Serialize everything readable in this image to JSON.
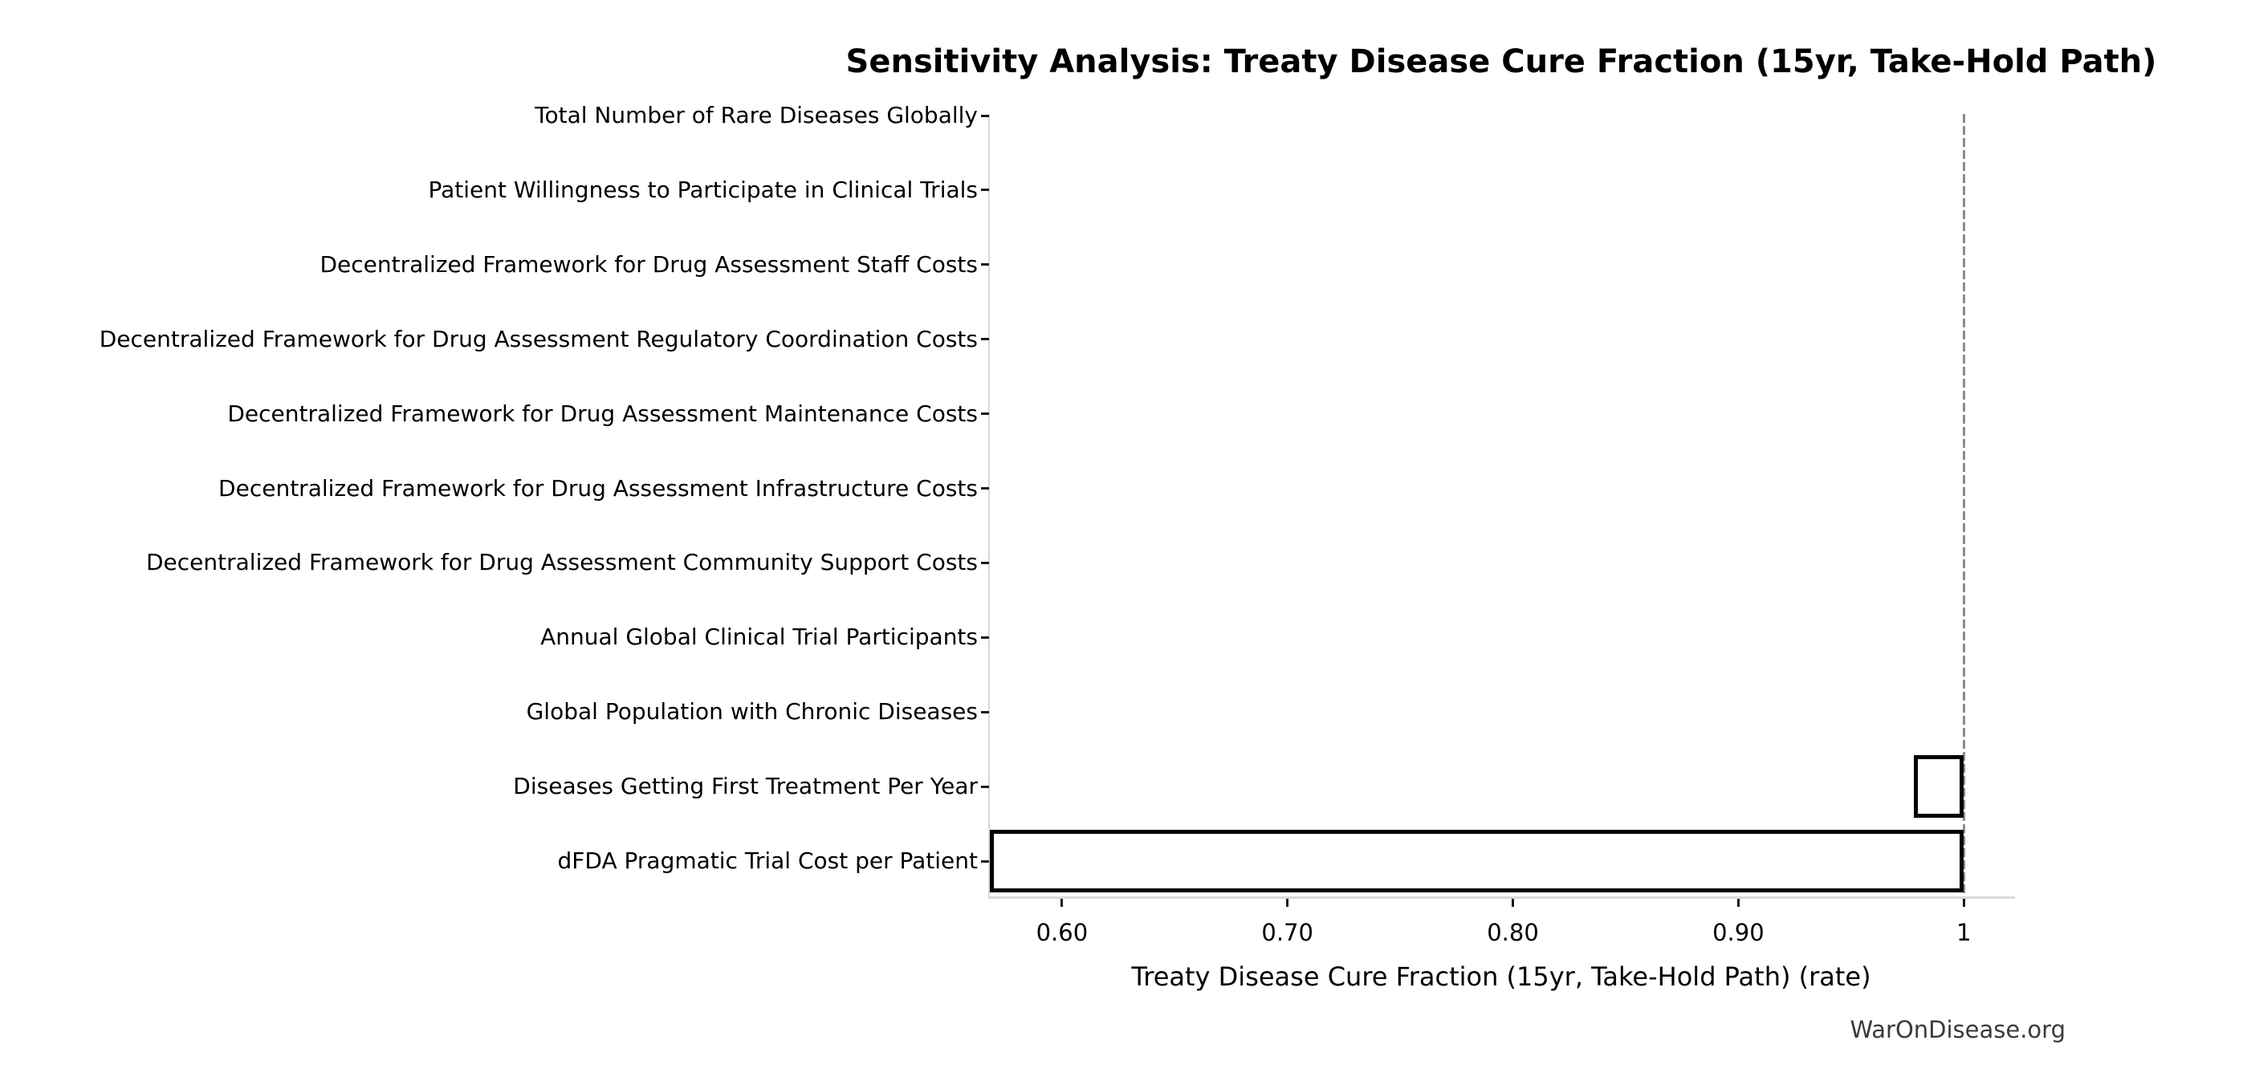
{
  "header": {
    "title": "Sensitivity Analysis: Treaty Disease Cure Fraction (15yr, Take-Hold Path)"
  },
  "footer": {
    "watermark": "WarOnDisease.org"
  },
  "chart_data": {
    "type": "bar",
    "orientation": "horizontal",
    "title": "Sensitivity Analysis: Treaty Disease Cure Fraction (15yr, Take-Hold Path)",
    "xlabel": "Treaty Disease Cure Fraction (15yr, Take-Hold Path) (rate)",
    "ylabel": "",
    "grid": false,
    "legend": null,
    "xlim": [
      0.568,
      1.022
    ],
    "baseline": 1.0,
    "xticks": [
      {
        "value": 0.6,
        "label": "0.60"
      },
      {
        "value": 0.7,
        "label": "0.70"
      },
      {
        "value": 0.8,
        "label": "0.80"
      },
      {
        "value": 0.9,
        "label": "0.90"
      },
      {
        "value": 1.0,
        "label": "1"
      }
    ],
    "categories": [
      "Total Number of Rare Diseases Globally",
      "Patient Willingness to Participate in Clinical Trials",
      "Decentralized Framework for Drug Assessment Staff Costs",
      "Decentralized Framework for Drug Assessment Regulatory Coordination Costs",
      "Decentralized Framework for Drug Assessment Maintenance Costs",
      "Decentralized Framework for Drug Assessment Infrastructure Costs",
      "Decentralized Framework for Drug Assessment Community Support Costs",
      "Annual Global Clinical Trial Participants",
      "Global Population with Chronic Diseases",
      "Diseases Getting First Treatment Per Year",
      "dFDA Pragmatic Trial Cost per Patient"
    ],
    "series": [
      {
        "name": "sensitivity_range",
        "bars": [
          {
            "low": 1.0,
            "high": 1.0
          },
          {
            "low": 1.0,
            "high": 1.0
          },
          {
            "low": 1.0,
            "high": 1.0
          },
          {
            "low": 1.0,
            "high": 1.0
          },
          {
            "low": 1.0,
            "high": 1.0
          },
          {
            "low": 1.0,
            "high": 1.0
          },
          {
            "low": 1.0,
            "high": 1.0
          },
          {
            "low": 1.0,
            "high": 1.0
          },
          {
            "low": 1.0,
            "high": 1.0
          },
          {
            "low": 0.978,
            "high": 1.0
          },
          {
            "low": 0.568,
            "high": 1.0
          }
        ]
      }
    ],
    "colors": {
      "bar_fill": "#ffffff",
      "bar_edge": "#000000",
      "baseline": "#8c8c8c",
      "spine": "#d9d9d9",
      "tick": "#1a1a1a",
      "text": "#000000",
      "watermark": "#3a3a3a"
    }
  }
}
